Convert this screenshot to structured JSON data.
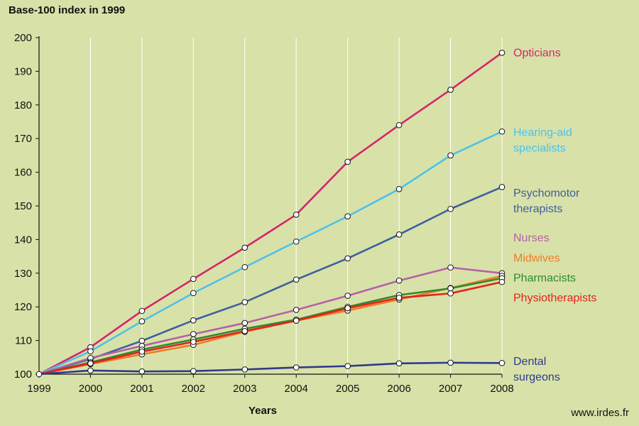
{
  "chart_data": {
    "type": "line",
    "title": "",
    "ylabel": "Base-100 index in 1999",
    "xlabel": "Years",
    "x": [
      1999,
      2000,
      2001,
      2002,
      2003,
      2004,
      2005,
      2006,
      2007,
      2008
    ],
    "ylim": [
      100,
      200
    ],
    "yticks": [
      100,
      110,
      120,
      130,
      140,
      150,
      160,
      170,
      180,
      190,
      200
    ],
    "grid": "vertical",
    "legend": "direct labels right",
    "series": [
      {
        "name": "Opticians",
        "label_lines": [
          "Opticians"
        ],
        "color": "#d6246e",
        "label_value": 195.5,
        "values": [
          100,
          108.0,
          118.8,
          128.3,
          137.6,
          147.4,
          163.1,
          174.0,
          184.5,
          195.5
        ]
      },
      {
        "name": "Hearing-aid specialists",
        "label_lines": [
          "Hearing-aid",
          "specialists"
        ],
        "color": "#4fc1e8",
        "label_value": 169.5,
        "values": [
          100,
          106.8,
          115.7,
          124.1,
          131.8,
          139.4,
          146.9,
          155.0,
          165.0,
          172.1
        ]
      },
      {
        "name": "Psychomotor therapists",
        "label_lines": [
          "Psychomotor",
          "therapists"
        ],
        "color": "#3f5f9e",
        "label_value": 151.5,
        "values": [
          100,
          104.5,
          109.9,
          116.0,
          121.4,
          128.1,
          134.4,
          141.5,
          149.1,
          155.6
        ]
      },
      {
        "name": "Nurses",
        "label_lines": [
          "Nurses"
        ],
        "color": "#b760a8",
        "label_value": 140.5,
        "values": [
          100,
          104.8,
          108.4,
          111.9,
          115.2,
          119.1,
          123.3,
          127.8,
          131.7,
          130.0
        ]
      },
      {
        "name": "Midwives",
        "label_lines": [
          "Midwives"
        ],
        "color": "#f07a28",
        "label_value": 134.5,
        "values": [
          100,
          103.0,
          105.9,
          108.7,
          112.6,
          115.9,
          118.9,
          122.2,
          125.6,
          129.2
        ]
      },
      {
        "name": "Pharmacists",
        "label_lines": [
          "Pharmacists"
        ],
        "color": "#2e8b2e",
        "label_value": 128.6,
        "values": [
          100,
          103.5,
          107.3,
          110.3,
          113.5,
          116.2,
          120.0,
          123.5,
          125.5,
          128.5
        ]
      },
      {
        "name": "Physiotherapists",
        "label_lines": [
          "Physiotherapists"
        ],
        "color": "#e2231a",
        "label_value": 122.7,
        "values": [
          100,
          103.2,
          106.7,
          109.6,
          112.8,
          115.9,
          119.6,
          122.7,
          124.0,
          127.4
        ]
      },
      {
        "name": "Dental surgeons",
        "label_lines": [
          "Dental",
          "surgeons"
        ],
        "color": "#2e3a8c",
        "label_value": 101.5,
        "values": [
          100,
          101.1,
          100.8,
          100.9,
          101.4,
          102.0,
          102.4,
          103.2,
          103.4,
          103.3
        ]
      }
    ]
  },
  "source": "www.irdes.fr"
}
